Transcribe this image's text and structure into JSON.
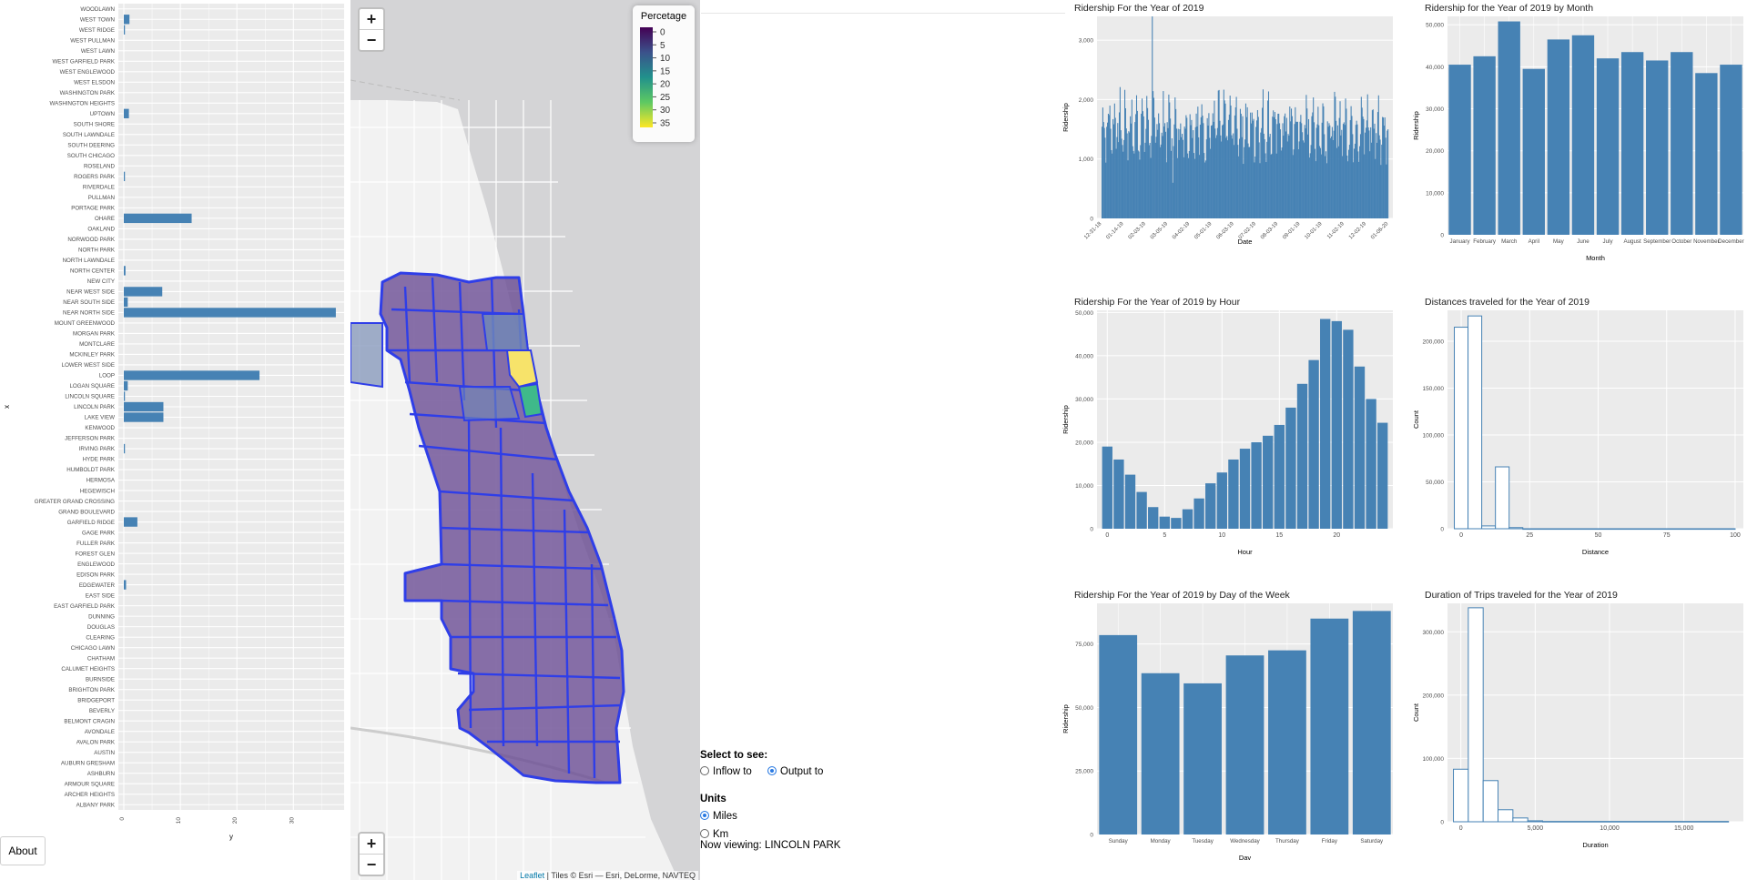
{
  "left_chart": {
    "xlabel": "y",
    "ylabel": "x",
    "xticks": [
      "0",
      "10",
      "20",
      "30"
    ],
    "xmax": 38,
    "areas": [
      {
        "name": "WOODLAWN",
        "value": 0
      },
      {
        "name": "WEST TOWN",
        "value": 1.0
      },
      {
        "name": "WEST RIDGE",
        "value": 0.2
      },
      {
        "name": "WEST PULLMAN",
        "value": 0
      },
      {
        "name": "WEST LAWN",
        "value": 0
      },
      {
        "name": "WEST GARFIELD PARK",
        "value": 0
      },
      {
        "name": "WEST ENGLEWOOD",
        "value": 0
      },
      {
        "name": "WEST ELSDON",
        "value": 0
      },
      {
        "name": "WASHINGTON PARK",
        "value": 0
      },
      {
        "name": "WASHINGTON HEIGHTS",
        "value": 0
      },
      {
        "name": "UPTOWN",
        "value": 0.9
      },
      {
        "name": "SOUTH SHORE",
        "value": 0
      },
      {
        "name": "SOUTH LAWNDALE",
        "value": 0
      },
      {
        "name": "SOUTH DEERING",
        "value": 0
      },
      {
        "name": "SOUTH CHICAGO",
        "value": 0
      },
      {
        "name": "ROSELAND",
        "value": 0
      },
      {
        "name": "ROGERS PARK",
        "value": 0.2
      },
      {
        "name": "RIVERDALE",
        "value": 0
      },
      {
        "name": "PULLMAN",
        "value": 0
      },
      {
        "name": "PORTAGE PARK",
        "value": 0
      },
      {
        "name": "OHARE",
        "value": 12.0
      },
      {
        "name": "OAKLAND",
        "value": 0
      },
      {
        "name": "NORWOOD PARK",
        "value": 0
      },
      {
        "name": "NORTH PARK",
        "value": 0
      },
      {
        "name": "NORTH LAWNDALE",
        "value": 0
      },
      {
        "name": "NORTH CENTER",
        "value": 0.3
      },
      {
        "name": "NEW CITY",
        "value": 0
      },
      {
        "name": "NEAR WEST SIDE",
        "value": 6.8
      },
      {
        "name": "NEAR SOUTH SIDE",
        "value": 0.7
      },
      {
        "name": "NEAR NORTH SIDE",
        "value": 37.5
      },
      {
        "name": "MOUNT GREENWOOD",
        "value": 0
      },
      {
        "name": "MORGAN PARK",
        "value": 0
      },
      {
        "name": "MONTCLARE",
        "value": 0
      },
      {
        "name": "MCKINLEY PARK",
        "value": 0
      },
      {
        "name": "LOWER WEST SIDE",
        "value": 0
      },
      {
        "name": "LOOP",
        "value": 24.0
      },
      {
        "name": "LOGAN SQUARE",
        "value": 0.7
      },
      {
        "name": "LINCOLN SQUARE",
        "value": 0.2
      },
      {
        "name": "LINCOLN PARK",
        "value": 7.0
      },
      {
        "name": "LAKE VIEW",
        "value": 7.0
      },
      {
        "name": "KENWOOD",
        "value": 0
      },
      {
        "name": "JEFFERSON PARK",
        "value": 0
      },
      {
        "name": "IRVING PARK",
        "value": 0.2
      },
      {
        "name": "HYDE PARK",
        "value": 0
      },
      {
        "name": "HUMBOLDT PARK",
        "value": 0
      },
      {
        "name": "HERMOSA",
        "value": 0
      },
      {
        "name": "HEGEWISCH",
        "value": 0
      },
      {
        "name": "GREATER GRAND CROSSING",
        "value": 0
      },
      {
        "name": "GRAND BOULEVARD",
        "value": 0
      },
      {
        "name": "GARFIELD RIDGE",
        "value": 2.4
      },
      {
        "name": "GAGE PARK",
        "value": 0
      },
      {
        "name": "FULLER PARK",
        "value": 0
      },
      {
        "name": "FOREST GLEN",
        "value": 0
      },
      {
        "name": "ENGLEWOOD",
        "value": 0
      },
      {
        "name": "EDISON PARK",
        "value": 0
      },
      {
        "name": "EDGEWATER",
        "value": 0.4
      },
      {
        "name": "EAST SIDE",
        "value": 0
      },
      {
        "name": "EAST GARFIELD PARK",
        "value": 0
      },
      {
        "name": "DUNNING",
        "value": 0
      },
      {
        "name": "DOUGLAS",
        "value": 0
      },
      {
        "name": "CLEARING",
        "value": 0
      },
      {
        "name": "CHICAGO LAWN",
        "value": 0
      },
      {
        "name": "CHATHAM",
        "value": 0
      },
      {
        "name": "CALUMET HEIGHTS",
        "value": 0
      },
      {
        "name": "BURNSIDE",
        "value": 0
      },
      {
        "name": "BRIGHTON PARK",
        "value": 0
      },
      {
        "name": "BRIDGEPORT",
        "value": 0
      },
      {
        "name": "BEVERLY",
        "value": 0
      },
      {
        "name": "BELMONT CRAGIN",
        "value": 0
      },
      {
        "name": "AVONDALE",
        "value": 0
      },
      {
        "name": "AVALON PARK",
        "value": 0
      },
      {
        "name": "AUSTIN",
        "value": 0
      },
      {
        "name": "AUBURN GRESHAM",
        "value": 0
      },
      {
        "name": "ASHBURN",
        "value": 0
      },
      {
        "name": "ARMOUR SQUARE",
        "value": 0
      },
      {
        "name": "ARCHER HEIGHTS",
        "value": 0
      },
      {
        "name": "ALBANY PARK",
        "value": 0
      }
    ]
  },
  "about_button": "About",
  "map": {
    "zoom_in": "+",
    "zoom_out": "−",
    "legend_title": "Percetage",
    "legend_ticks": [
      "0",
      "5",
      "10",
      "15",
      "20",
      "25",
      "30",
      "35"
    ],
    "colors": {
      "fill": "#6a4c93",
      "border": "#2f3ee8",
      "accent": "#2a7ae2"
    },
    "attribution_link": "Leaflet",
    "attribution_text": " | Tiles © Esri — Esri, DeLorme, NAVTEQ"
  },
  "controls": {
    "select_label": "Select to see:",
    "inflow": "Inflow to",
    "output": "Output to",
    "selected_direction": "Output to",
    "units_label": "Units",
    "miles": "Miles",
    "km": "Km",
    "selected_unit": "Miles",
    "now_viewing": "Now viewing: LINCOLN PARK"
  },
  "charts": [
    {
      "id": "daily",
      "type": "bar",
      "title": "Ridership For the Year of 2019",
      "xlabel": "Date",
      "ylabel": "Ridership",
      "yticks": [
        0,
        1000,
        2000,
        3000
      ],
      "ylim": [
        0,
        3400
      ],
      "xtick_labels": [
        "12-31-18",
        "01-14-19",
        "02-03-19",
        "03-05-19",
        "04-02-19",
        "05-01-19",
        "06-03-19",
        "07-02-19",
        "08-03-19",
        "09-01-19",
        "10-01-19",
        "11-02-19",
        "12-02-19",
        "01-06-20"
      ],
      "note": "~365 daily bars, values roughly 1000-2000, spike ~3400 in early March"
    },
    {
      "id": "month",
      "type": "bar",
      "title": "Ridership for the Year of 2019 by Month",
      "xlabel": "Month",
      "ylabel": "Ridership",
      "yticks": [
        0,
        10000,
        20000,
        30000,
        40000,
        50000
      ],
      "ylim": [
        0,
        52000
      ],
      "categories": [
        "January",
        "February",
        "March",
        "April",
        "May",
        "June",
        "July",
        "August",
        "September",
        "October",
        "November",
        "December"
      ],
      "values": [
        40500,
        42500,
        50800,
        39500,
        46500,
        47500,
        42000,
        43500,
        41500,
        43500,
        38500,
        40500
      ]
    },
    {
      "id": "hour",
      "type": "bar",
      "title": "Ridership For the Year of 2019 by Hour",
      "xlabel": "Hour",
      "ylabel": "Ridership",
      "yticks": [
        0,
        10000,
        20000,
        30000,
        40000,
        50000
      ],
      "ylim": [
        0,
        50500
      ],
      "xticks": [
        0,
        5,
        10,
        15,
        20
      ],
      "values": [
        19000,
        16000,
        12500,
        8500,
        5000,
        2800,
        2500,
        4500,
        7000,
        10500,
        13000,
        16000,
        18500,
        20000,
        21500,
        24000,
        28000,
        33500,
        39000,
        48500,
        48000,
        46000,
        37500,
        30000,
        24500
      ]
    },
    {
      "id": "distance",
      "type": "histogram",
      "title": "Distances traveled for the Year of 2019",
      "xlabel": "Distance",
      "ylabel": "Count",
      "yticks": [
        0,
        50000,
        100000,
        150000,
        200000
      ],
      "ylim": [
        0,
        233000
      ],
      "xticks": [
        0,
        25,
        50,
        75,
        100
      ],
      "xlim": [
        -5,
        103
      ],
      "bins": [
        [
          -2.5,
          2.5,
          215000
        ],
        [
          2.5,
          7.5,
          227000
        ],
        [
          7.5,
          12.5,
          3000
        ],
        [
          12.5,
          17.5,
          66000
        ],
        [
          17.5,
          22.5,
          1200
        ],
        [
          22.5,
          100,
          0
        ]
      ]
    },
    {
      "id": "dow",
      "type": "bar",
      "title": "Ridership For the Year of 2019 by Day of the Week",
      "xlabel": "Day",
      "ylabel": "Ridership",
      "yticks": [
        0,
        25000,
        50000,
        75000
      ],
      "ylim": [
        0,
        91000
      ],
      "categories": [
        "Sunday",
        "Monday",
        "Tuesday",
        "Wednesday",
        "Thursday",
        "Friday",
        "Saturday"
      ],
      "values": [
        78500,
        63500,
        59500,
        70500,
        72500,
        85000,
        88000
      ]
    },
    {
      "id": "duration",
      "type": "histogram",
      "title": "Duration of Trips traveled for the Year of 2019",
      "xlabel": "Duration",
      "ylabel": "Count",
      "yticks": [
        0,
        100000,
        200000,
        300000
      ],
      "ylim": [
        0,
        345000
      ],
      "xticks": [
        0,
        5000,
        10000,
        15000
      ],
      "xlim": [
        -900,
        19000
      ],
      "bins": [
        [
          -500,
          500,
          83000
        ],
        [
          500,
          1500,
          338000
        ],
        [
          1500,
          2500,
          65000
        ],
        [
          2500,
          3500,
          19000
        ],
        [
          3500,
          4500,
          6000
        ],
        [
          4500,
          5500,
          1500
        ],
        [
          5500,
          18000,
          500
        ]
      ]
    }
  ]
}
